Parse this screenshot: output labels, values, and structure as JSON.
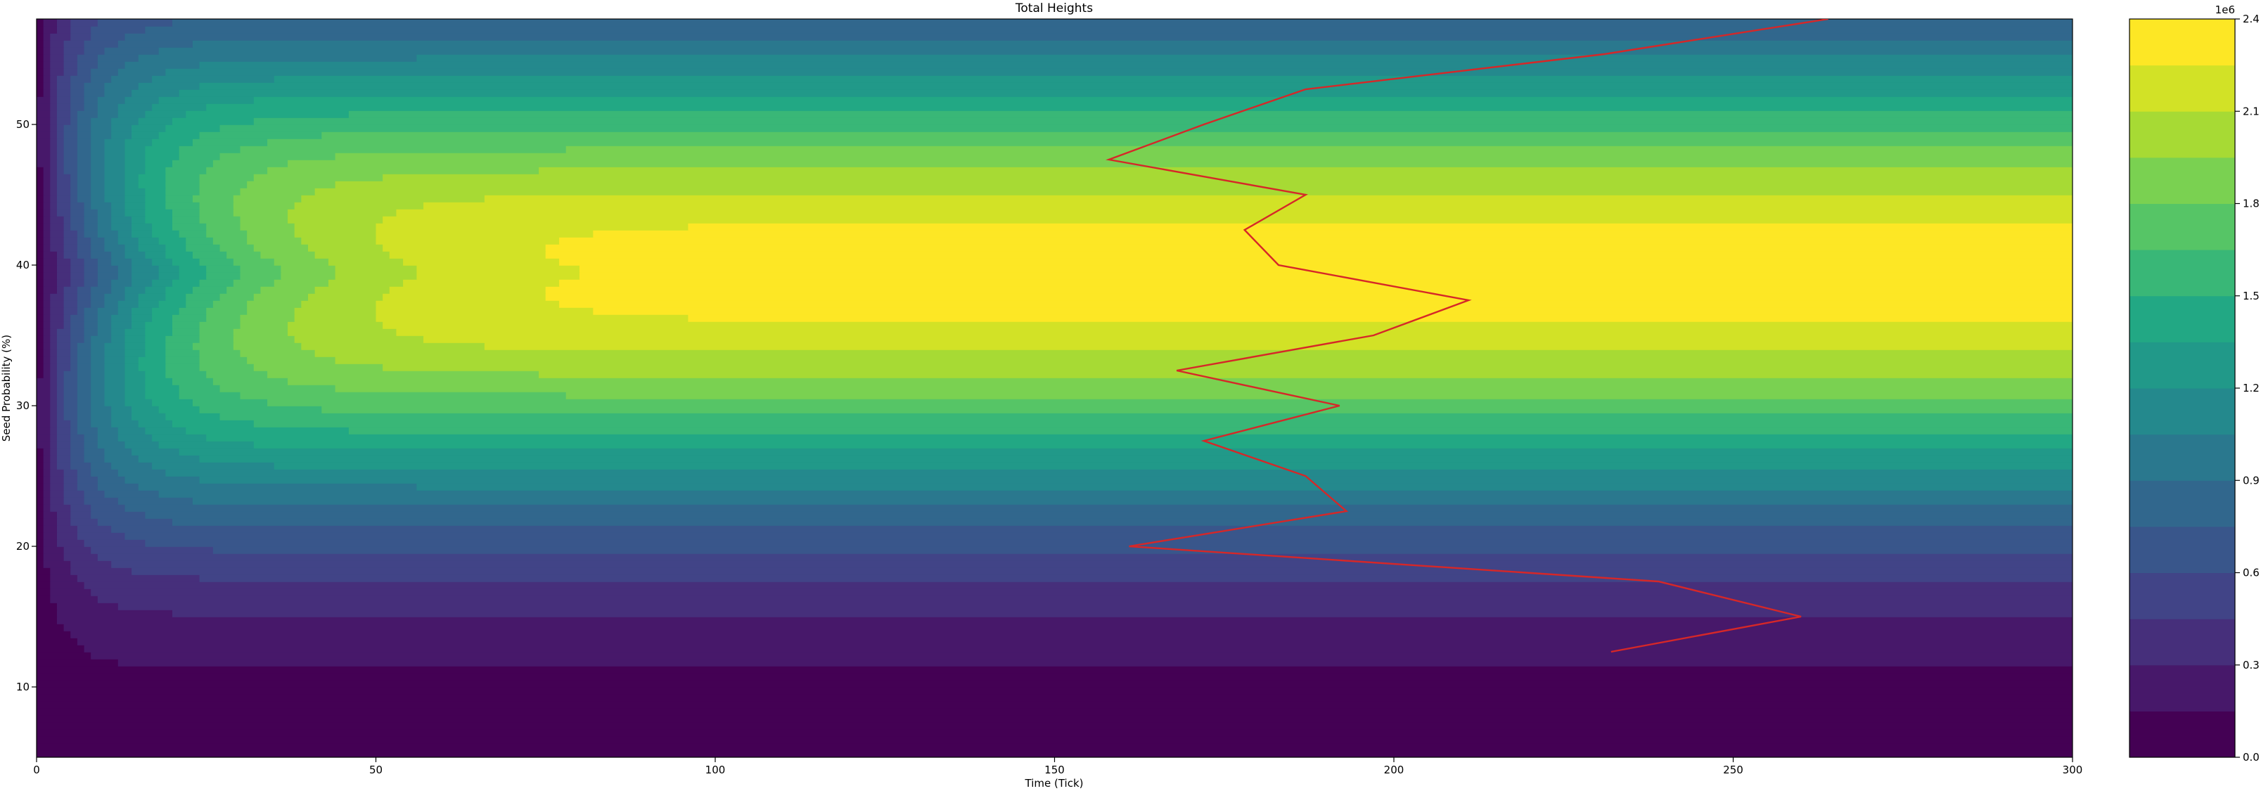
{
  "chart_data": {
    "type": "contourf",
    "title": "Total Heights",
    "xlabel": "Time (Tick)",
    "ylabel": "Seed Probability (%)",
    "xlim": [
      0,
      300
    ],
    "ylim": [
      5,
      57.5
    ],
    "x_ticks": [
      0,
      50,
      100,
      150,
      200,
      250,
      300
    ],
    "y_ticks": [
      10,
      20,
      30,
      40,
      50
    ],
    "x_tick_labels": [
      "0",
      "50",
      "100",
      "150",
      "200",
      "250",
      "300"
    ],
    "y_tick_labels": [
      "10",
      "20",
      "30",
      "40",
      "50"
    ],
    "colormap": "viridis",
    "levels": [
      0,
      150000,
      300000,
      450000,
      600000,
      750000,
      900000,
      1050000,
      1200000,
      1350000,
      1500000,
      1650000,
      1800000,
      1950000,
      2100000,
      2250000,
      2400000
    ],
    "colorbar": {
      "ticks": [
        0,
        300000,
        600000,
        900000,
        1200000,
        1500000,
        1800000,
        2100000,
        2400000
      ],
      "tick_labels": [
        "0.0",
        "0.3",
        "0.6",
        "0.9",
        "1.2",
        "1.5",
        "1.8",
        "2.1",
        "2.4"
      ],
      "offset_label": "1e6"
    },
    "series": [
      {
        "type": "line",
        "color": "#d62728",
        "points": [
          {
            "x": 232,
            "y": 12.5
          },
          {
            "x": 260,
            "y": 15
          },
          {
            "x": 239,
            "y": 17.5
          },
          {
            "x": 161,
            "y": 20
          },
          {
            "x": 193,
            "y": 22.5
          },
          {
            "x": 187,
            "y": 25
          },
          {
            "x": 172,
            "y": 27.5
          },
          {
            "x": 192,
            "y": 30
          },
          {
            "x": 168,
            "y": 32.5
          },
          {
            "x": 197,
            "y": 35
          },
          {
            "x": 211,
            "y": 37.5
          },
          {
            "x": 183,
            "y": 40
          },
          {
            "x": 178,
            "y": 42.5
          },
          {
            "x": 187,
            "y": 45
          },
          {
            "x": 158,
            "y": 47.5
          },
          {
            "x": 172,
            "y": 50
          },
          {
            "x": 187,
            "y": 52.5
          },
          {
            "x": 231,
            "y": 55
          },
          {
            "x": 264,
            "y": 57.5
          }
        ]
      }
    ],
    "grid": false
  }
}
